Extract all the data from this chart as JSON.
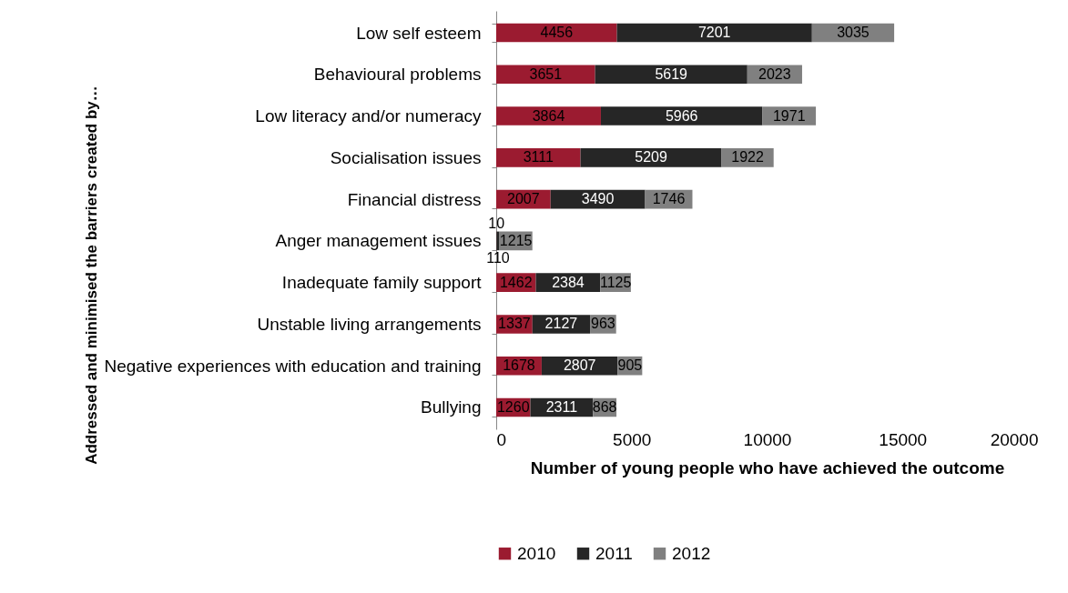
{
  "chart_data": {
    "type": "bar",
    "orientation": "horizontal",
    "stacked": true,
    "data_labels": true,
    "grid": false,
    "legend": "bottom",
    "xlabel": "Number of young people who have achieved the outcome",
    "ylabel": "Addressed and minimised the barriers created by…",
    "categories": [
      "Low self esteem",
      "Behavioural problems",
      "Low literacy and/or numeracy",
      "Socialisation issues",
      "Financial distress",
      "Anger management issues",
      "Inadequate family support",
      "Unstable living arrangements ",
      "Negative experiences with education and training",
      "Bullying"
    ],
    "xlim": [
      0,
      20000
    ],
    "xticks": [
      0,
      5000,
      10000,
      15000,
      20000
    ],
    "series": [
      {
        "name": "2010",
        "color": "#9b1b30",
        "values": [
          4456,
          3651,
          3864,
          3111,
          2007,
          10,
          1462,
          1337,
          1678,
          1260
        ]
      },
      {
        "name": "2011",
        "color": "#262626",
        "values": [
          7201,
          5619,
          5966,
          5209,
          3490,
          110,
          2384,
          2127,
          2807,
          2311
        ]
      },
      {
        "name": "2012",
        "color": "#808080",
        "values": [
          3035,
          2023,
          1971,
          1922,
          1746,
          1215,
          1125,
          963,
          905,
          868
        ]
      }
    ]
  }
}
